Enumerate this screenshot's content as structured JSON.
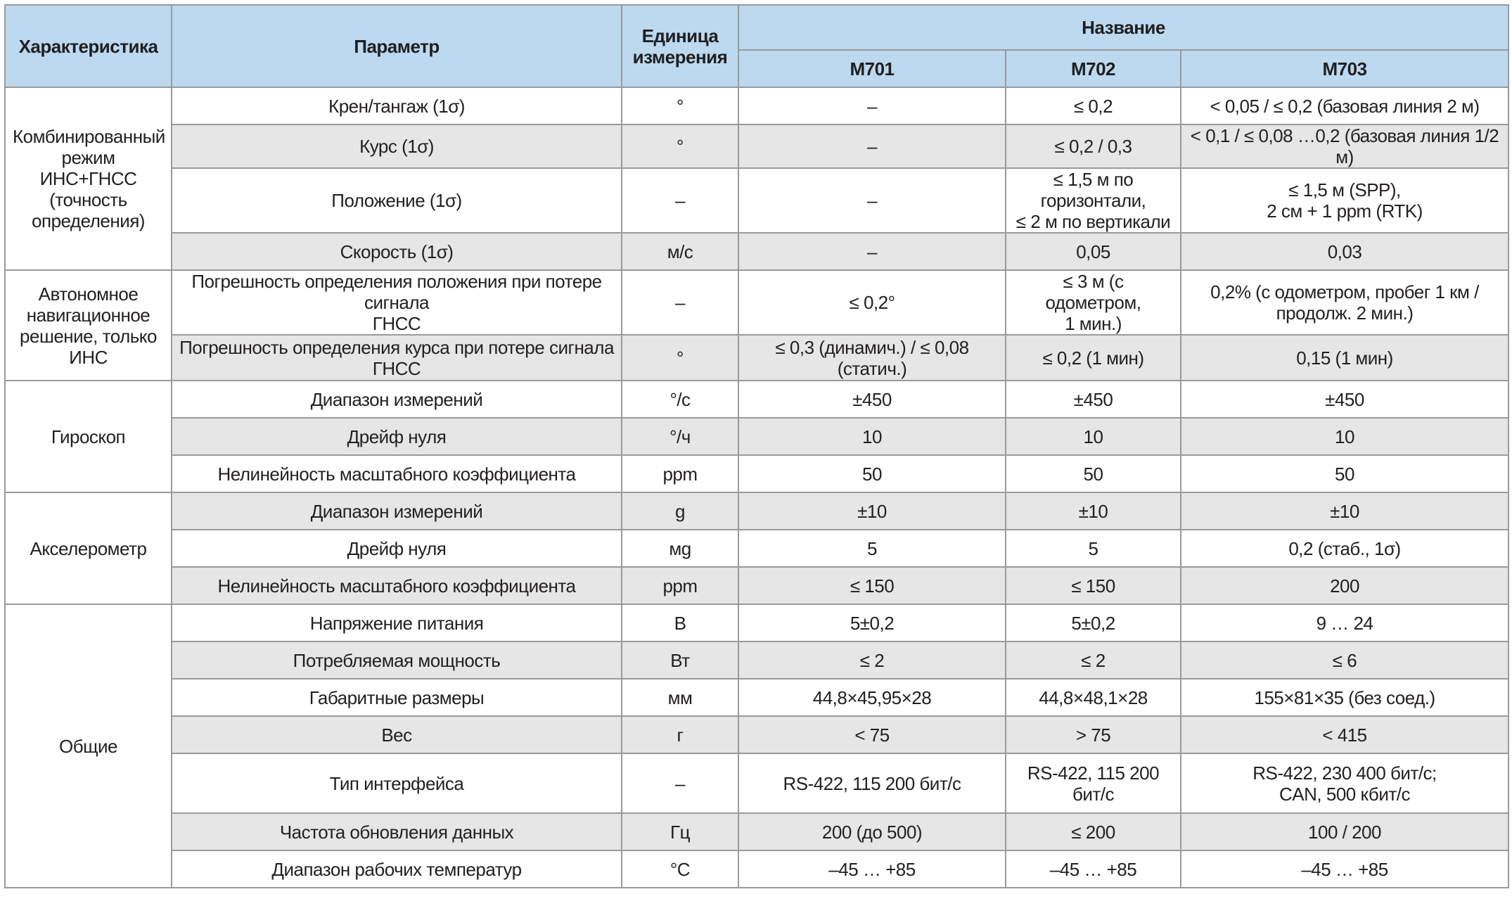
{
  "header": {
    "characteristic": "Характеристика",
    "parameter": "Параметр",
    "unit": "Единица\nизмерения",
    "name": "Название",
    "models": [
      "M701",
      "M702",
      "M703"
    ]
  },
  "groups": [
    {
      "label": "Комбинированный\nрежим ИНС+ГНСС\n(точность\nопределения)",
      "rows": [
        {
          "param": "Крен/тангаж (1σ)",
          "unit": "°",
          "m701": "–",
          "m702": "≤ 0,2",
          "m703": "< 0,05 / ≤ 0,2 (базовая линия 2 м)"
        },
        {
          "param": "Курс (1σ)",
          "unit": "°",
          "m701": "–",
          "m702": "≤ 0,2 / 0,3",
          "m703": "< 0,1  / ≤ 0,08 …0,2 (базовая линия 1/2 м)"
        },
        {
          "param": "Положение (1σ)",
          "unit": "–",
          "m701": "–",
          "m702": "≤ 1,5 м по горизонтали,\n≤ 2 м по вертикали",
          "m703": "≤ 1,5 м (SPP),\n2 см + 1 ppm (RTK)"
        },
        {
          "param": "Скорость (1σ)",
          "unit": "м/с",
          "m701": "–",
          "m702": "0,05",
          "m703": "0,03"
        }
      ]
    },
    {
      "label": "Автономное\nнавигационное\nрешение, только\nИНС",
      "rows": [
        {
          "param": "Погрешность определения положения при потере сигнала\nГНСС",
          "unit": "–",
          "m701": "≤ 0,2°",
          "m702": "≤ 3 м (с одометром,\n1 мин.)",
          "m703": "0,2% (с одометром, пробег 1 км /\nпродолж. 2 мин.)"
        },
        {
          "param": "Погрешность определения курса при потере сигнала ГНСС",
          "unit": "°",
          "m701": "≤ 0,3 (динамич.) / ≤ 0,08 (статич.)",
          "m702": "≤ 0,2 (1 мин)",
          "m703": "0,15 (1 мин)"
        }
      ]
    },
    {
      "label": "Гироскоп",
      "rows": [
        {
          "param": "Диапазон измерений",
          "unit": "°/с",
          "m701": "±450",
          "m702": "±450",
          "m703": "±450"
        },
        {
          "param": "Дрейф нуля",
          "unit": "°/ч",
          "m701": "10",
          "m702": "10",
          "m703": "10"
        },
        {
          "param": "Нелинейность масштабного коэффициента",
          "unit": "ppm",
          "m701": "50",
          "m702": "50",
          "m703": "50"
        }
      ]
    },
    {
      "label": "Акселерометр",
      "rows": [
        {
          "param": "Диапазон измерений",
          "unit": "g",
          "m701": "±10",
          "m702": "±10",
          "m703": "±10"
        },
        {
          "param": "Дрейф нуля",
          "unit": "мg",
          "m701": "5",
          "m702": "5",
          "m703": "0,2 (стаб., 1σ)"
        },
        {
          "param": "Нелинейность масштабного коэффициента",
          "unit": "ppm",
          "m701": "≤ 150",
          "m702": "≤ 150",
          "m703": "200"
        }
      ]
    },
    {
      "label": "Общие",
      "rows": [
        {
          "param": "Напряжение питания",
          "unit": "В",
          "m701": "5±0,2",
          "m702": "5±0,2",
          "m703": "9 … 24"
        },
        {
          "param": "Потребляемая мощность",
          "unit": "Вт",
          "m701": "≤ 2",
          "m702": "≤ 2",
          "m703": "≤ 6"
        },
        {
          "param": "Габаритные размеры",
          "unit": "мм",
          "m701": "44,8×45,95×28",
          "m702": "44,8×48,1×28",
          "m703": "155×81×35 (без соед.)"
        },
        {
          "param": "Вес",
          "unit": "г",
          "m701": "< 75",
          "m702": "> 75",
          "m703": "< 415"
        },
        {
          "param": "Тип интерфейса",
          "unit": "–",
          "m701": "RS-422, 115 200 бит/с",
          "m702": "RS-422, 115 200 бит/с",
          "m703": "RS-422, 230 400 бит/с;\nCAN, 500 кбит/с"
        },
        {
          "param": "Частота обновления данных",
          "unit": "Гц",
          "m701": "200 (до 500)",
          "m702": "≤ 200",
          "m703": "100 / 200"
        },
        {
          "param": "Диапазон рабочих температур",
          "unit": "°С",
          "m701": "–45 … +85",
          "m702": "–45 … +85",
          "m703": "–45 … +85"
        }
      ]
    }
  ]
}
